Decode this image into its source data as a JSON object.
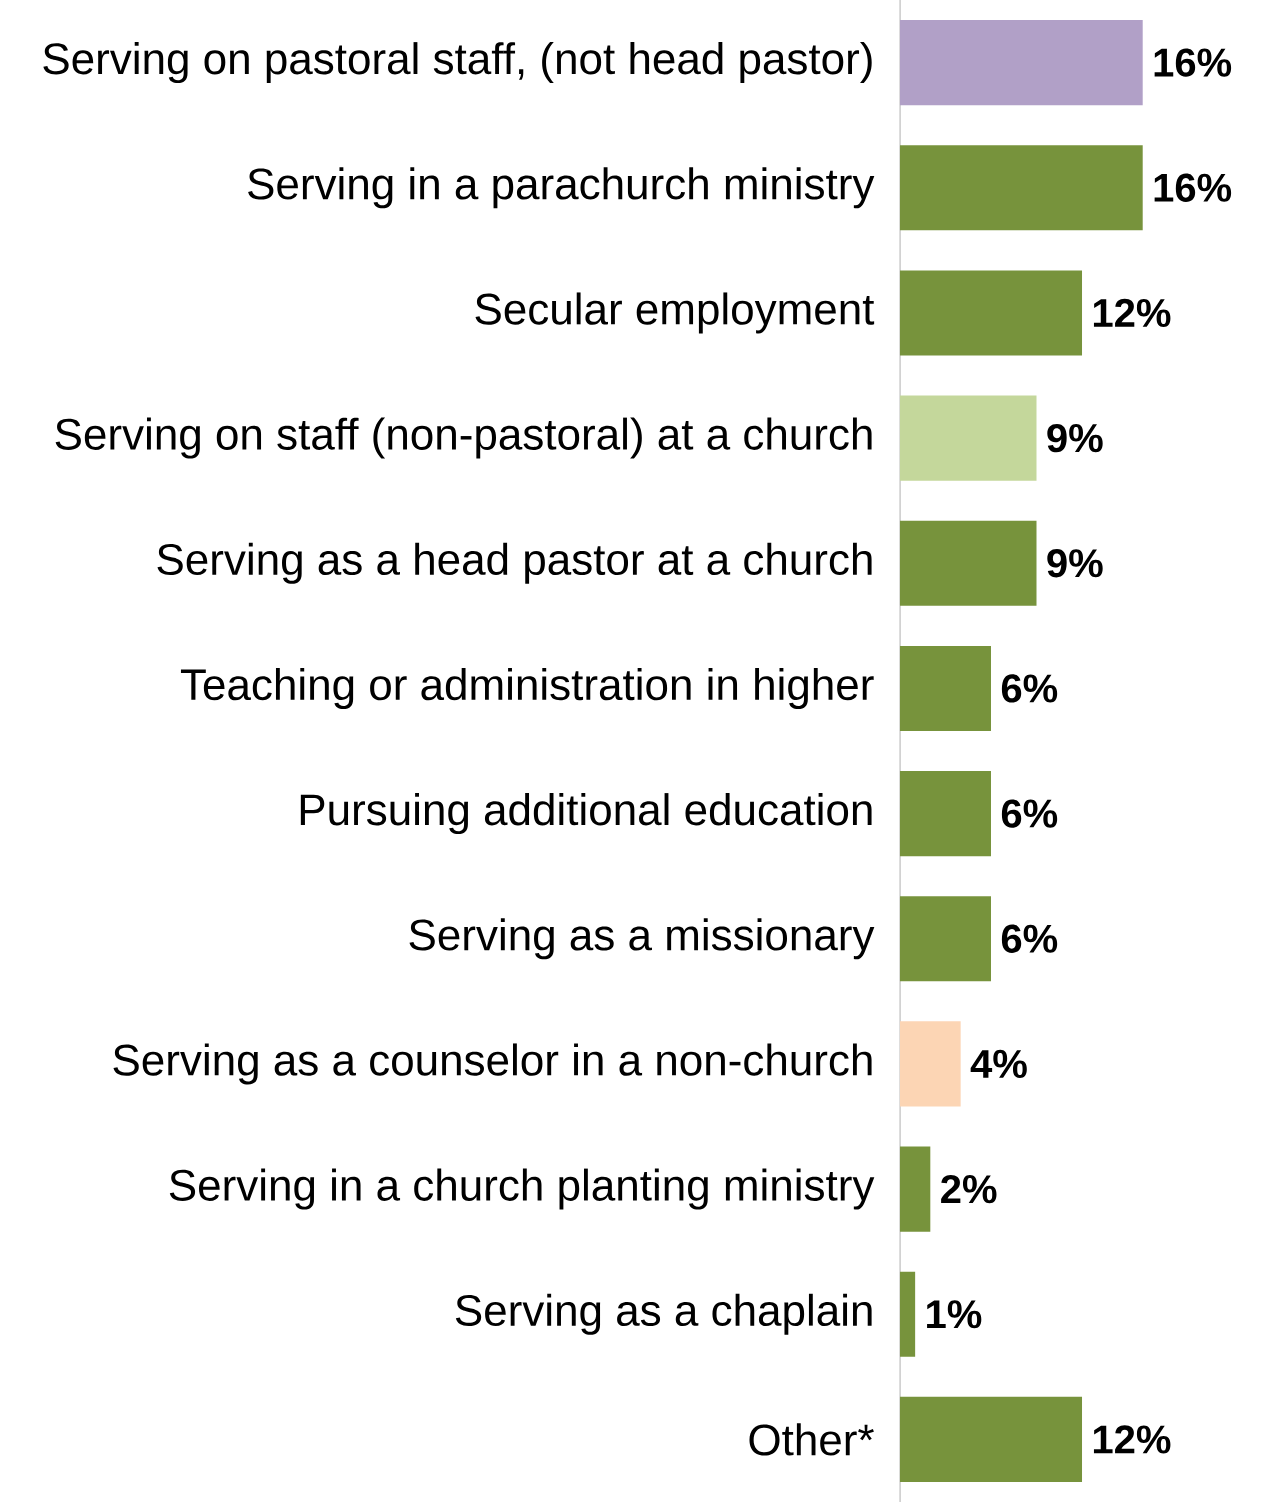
{
  "chart_data": {
    "type": "bar",
    "orientation": "horizontal",
    "categories": [
      "Serving on pastoral staff, (not head pastor)",
      "Serving in a parachurch ministry",
      "Secular employment",
      "Serving on staff (non-pastoral) at a church",
      "Serving as a head pastor at a church",
      "Teaching or administration in higher",
      "Pursuing additional education",
      "Serving as a missionary",
      "Serving as a counselor in a non-church",
      "Serving in a church planting ministry",
      "Serving as a chaplain",
      "Other*"
    ],
    "values": [
      16,
      16,
      12,
      9,
      9,
      6,
      6,
      6,
      4,
      2,
      1,
      12
    ],
    "value_labels": [
      "16%",
      "16%",
      "12%",
      "9%",
      "9%",
      "6%",
      "6%",
      "6%",
      "4%",
      "2%",
      "1%",
      "12%"
    ],
    "colors": [
      "#b1a0c7",
      "#77933c",
      "#77933c",
      "#c4d79b",
      "#77933c",
      "#77933c",
      "#77933c",
      "#77933c",
      "#fcd5b4",
      "#77933c",
      "#77933c",
      "#77933c"
    ]
  }
}
